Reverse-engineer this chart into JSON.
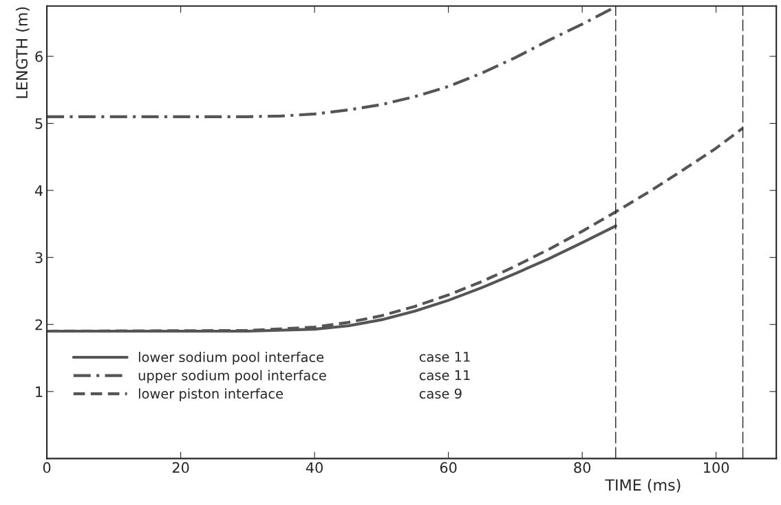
{
  "chart_data": {
    "type": "line",
    "xlabel": "TIME (ms)",
    "ylabel": "LENGTH (m)",
    "xlim": [
      0,
      109
    ],
    "ylim": [
      0,
      6.75
    ],
    "xticks": [
      0,
      20,
      40,
      60,
      80,
      100
    ],
    "yticks": [
      1,
      2,
      3,
      4,
      5,
      6
    ],
    "grid": false,
    "legend": "bottom left",
    "series": [
      {
        "name": "lower sodium pool interface",
        "color": "#555555",
        "line_style": "solid",
        "x": [
          0,
          30,
          40,
          45,
          50,
          55,
          60,
          65,
          70,
          75,
          80,
          85
        ],
        "values": [
          1.9,
          1.9,
          1.93,
          1.98,
          2.07,
          2.2,
          2.36,
          2.55,
          2.76,
          2.98,
          3.22,
          3.47
        ]
      },
      {
        "name": "upper sodium pool interface",
        "color": "#555555",
        "line_style": "dashdot",
        "x": [
          0,
          30,
          35,
          40,
          45,
          50,
          55,
          60,
          65,
          70,
          75,
          80,
          85
        ],
        "values": [
          5.1,
          5.1,
          5.11,
          5.14,
          5.2,
          5.28,
          5.4,
          5.55,
          5.75,
          5.98,
          6.24,
          6.48,
          6.74
        ]
      },
      {
        "name": "lower piston interface",
        "color": "#555555",
        "line_style": "dashed",
        "x": [
          0,
          30,
          40,
          45,
          50,
          55,
          60,
          65,
          70,
          75,
          80,
          85,
          90,
          95,
          100,
          104
        ],
        "values": [
          1.9,
          1.91,
          1.96,
          2.03,
          2.13,
          2.27,
          2.44,
          2.64,
          2.87,
          3.12,
          3.39,
          3.68,
          3.98,
          4.3,
          4.63,
          4.93
        ]
      }
    ],
    "annotations": [
      "case 11",
      "case 11",
      "case 9"
    ],
    "ref_lines": [
      {
        "axis": "x",
        "value": 85,
        "color": "#222222",
        "line_style": "dashed"
      },
      {
        "axis": "x",
        "value": 104,
        "color": "#222222",
        "line_style": "dashed"
      }
    ]
  }
}
